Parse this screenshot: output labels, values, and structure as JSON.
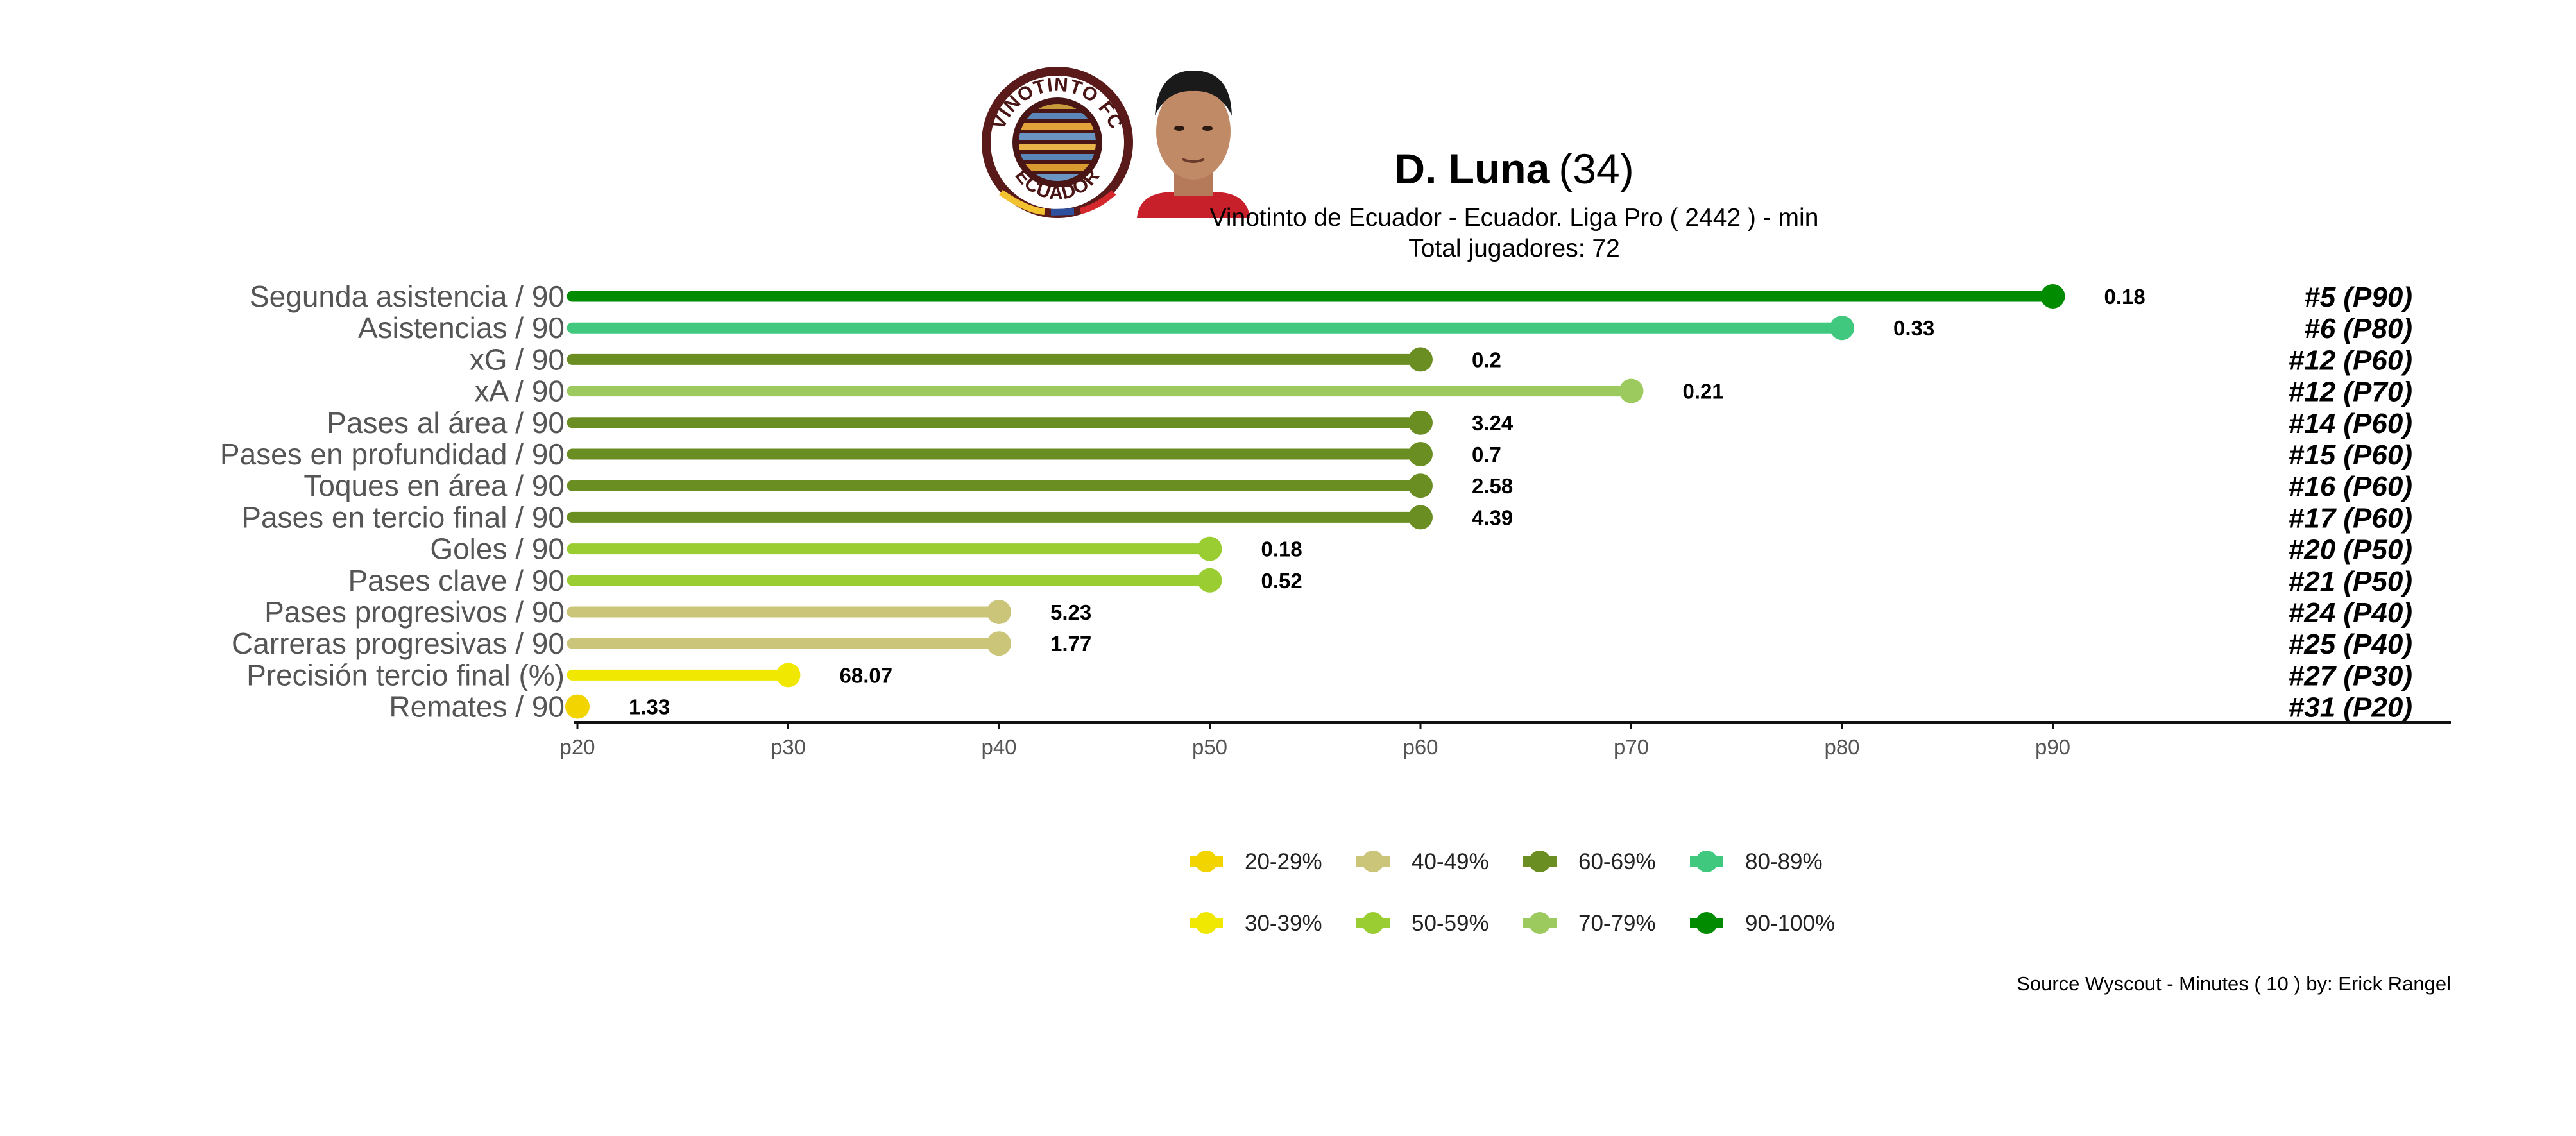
{
  "player": {
    "name": "D. Luna",
    "age": "(34)",
    "club_line": "Vinotinto de Ecuador  -  Ecuador. Liga Pro  ( 2442 ) - min",
    "total_line": "Total jugadores:  72"
  },
  "logo": {
    "top_text": "VINOTINTO FC",
    "bottom_text": "ECUADOR",
    "ring_color": "#5a1a1a"
  },
  "caption": "Source Wyscout - Minutes ( 10 ) by: Erick Rangel",
  "chart_data": {
    "type": "lollipop",
    "title": "D. Luna (34)",
    "subtitle": "Vinotinto de Ecuador  -  Ecuador. Liga Pro  ( 2442 ) - min",
    "xlim": [
      "p20",
      "p90"
    ],
    "x_ticks": [
      "p20",
      "p30",
      "p40",
      "p50",
      "p60",
      "p70",
      "p80",
      "p90"
    ],
    "grid": false,
    "legend_position": "bottom",
    "series": [
      {
        "metric": "Segunda asistencia / 90",
        "percentile": 90,
        "value": "0.18",
        "rank": "#5 (P90)"
      },
      {
        "metric": "Asistencias / 90",
        "percentile": 80,
        "value": "0.33",
        "rank": "#6 (P80)"
      },
      {
        "metric": "xG / 90",
        "percentile": 60,
        "value": "0.2",
        "rank": "#12 (P60)"
      },
      {
        "metric": "xA / 90",
        "percentile": 70,
        "value": "0.21",
        "rank": "#12 (P70)"
      },
      {
        "metric": "Pases al área / 90",
        "percentile": 60,
        "value": "3.24",
        "rank": "#14 (P60)"
      },
      {
        "metric": "Pases en profundidad / 90",
        "percentile": 60,
        "value": "0.7",
        "rank": "#15 (P60)"
      },
      {
        "metric": "Toques en área / 90",
        "percentile": 60,
        "value": "2.58",
        "rank": "#16 (P60)"
      },
      {
        "metric": "Pases en tercio final / 90",
        "percentile": 60,
        "value": "4.39",
        "rank": "#17 (P60)"
      },
      {
        "metric": "Goles / 90",
        "percentile": 50,
        "value": "0.18",
        "rank": "#20 (P50)"
      },
      {
        "metric": "Pases clave / 90",
        "percentile": 50,
        "value": "0.52",
        "rank": "#21 (P50)"
      },
      {
        "metric": "Pases progresivos / 90",
        "percentile": 40,
        "value": "5.23",
        "rank": "#24 (P40)"
      },
      {
        "metric": "Carreras progresivas / 90",
        "percentile": 40,
        "value": "1.77",
        "rank": "#25 (P40)"
      },
      {
        "metric": "Precisión tercio final (%)",
        "percentile": 30,
        "value": "68.07",
        "rank": "#27 (P30)"
      },
      {
        "metric": "Remates / 90",
        "percentile": 20,
        "value": "1.33",
        "rank": "#31 (P20)"
      }
    ],
    "legend": [
      {
        "label": "20-29%",
        "color": "#f2d500"
      },
      {
        "label": "30-39%",
        "color": "#f0e800"
      },
      {
        "label": "40-49%",
        "color": "#cbc57a"
      },
      {
        "label": "50-59%",
        "color": "#9acd32"
      },
      {
        "label": "60-69%",
        "color": "#6b8e23"
      },
      {
        "label": "70-79%",
        "color": "#9dca5f"
      },
      {
        "label": "80-89%",
        "color": "#3fc87e"
      },
      {
        "label": "90-100%",
        "color": "#008b00"
      }
    ]
  }
}
